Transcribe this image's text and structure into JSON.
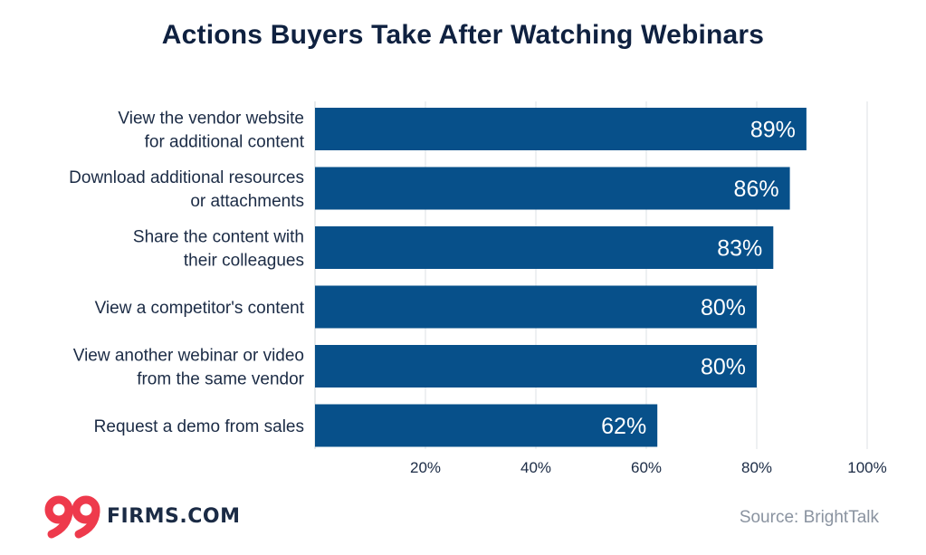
{
  "title": "Actions Buyers Take After Watching Webinars",
  "chart_data": {
    "type": "bar",
    "orientation": "horizontal",
    "categories": [
      [
        "View the vendor website",
        "for additional content"
      ],
      [
        "Download additional resources",
        "or attachments"
      ],
      [
        "Share the content with",
        "their colleagues"
      ],
      [
        "View a competitor's content"
      ],
      [
        "View another webinar or video",
        "from the same vendor"
      ],
      [
        "Request a demo from sales"
      ]
    ],
    "values": [
      89,
      86,
      83,
      80,
      80,
      62
    ],
    "value_labels": [
      "89%",
      "86%",
      "83%",
      "80%",
      "80%",
      "62%"
    ],
    "xlim": [
      0,
      100
    ],
    "xticks": [
      20,
      40,
      60,
      80,
      100
    ],
    "xtick_labels": [
      "20%",
      "40%",
      "60%",
      "80%",
      "100%"
    ],
    "grid": true,
    "bar_color": "#07508a"
  },
  "logo": {
    "mark": "99",
    "text": "FIRMS.COM",
    "mark_color": "#ee3a4c"
  },
  "source": "Source: BrightTalk"
}
